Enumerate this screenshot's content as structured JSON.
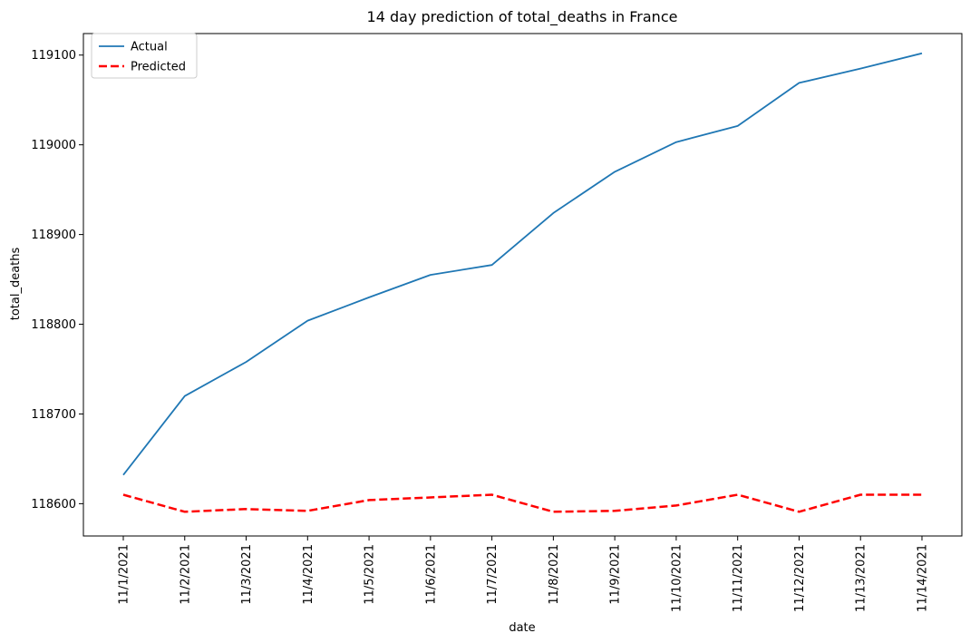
{
  "chart_data": {
    "type": "line",
    "title": "14 day prediction of total_deaths in France",
    "xlabel": "date",
    "ylabel": "total_deaths",
    "categories": [
      "11/1/2021",
      "11/2/2021",
      "11/3/2021",
      "11/4/2021",
      "11/5/2021",
      "11/6/2021",
      "11/7/2021",
      "11/8/2021",
      "11/9/2021",
      "11/10/2021",
      "11/11/2021",
      "11/12/2021",
      "11/13/2021",
      "11/14/2021"
    ],
    "ylim": [
      118564,
      119124
    ],
    "yticks": [
      118600,
      118700,
      118800,
      118900,
      119000,
      119100
    ],
    "grid": false,
    "legend": "top-left",
    "series": [
      {
        "name": "Actual",
        "color": "#1f77b4",
        "style": "solid",
        "values": [
          118632,
          118720,
          118758,
          118804,
          118830,
          118855,
          118866,
          118924,
          118970,
          119003,
          119021,
          119069,
          119085,
          119102
        ]
      },
      {
        "name": "Predicted",
        "color": "#ff0000",
        "style": "dashed",
        "values": [
          118610,
          118591,
          118594,
          118592,
          118604,
          118607,
          118610,
          118591,
          118592,
          118598,
          118610,
          118591,
          118610,
          118610
        ]
      }
    ]
  }
}
